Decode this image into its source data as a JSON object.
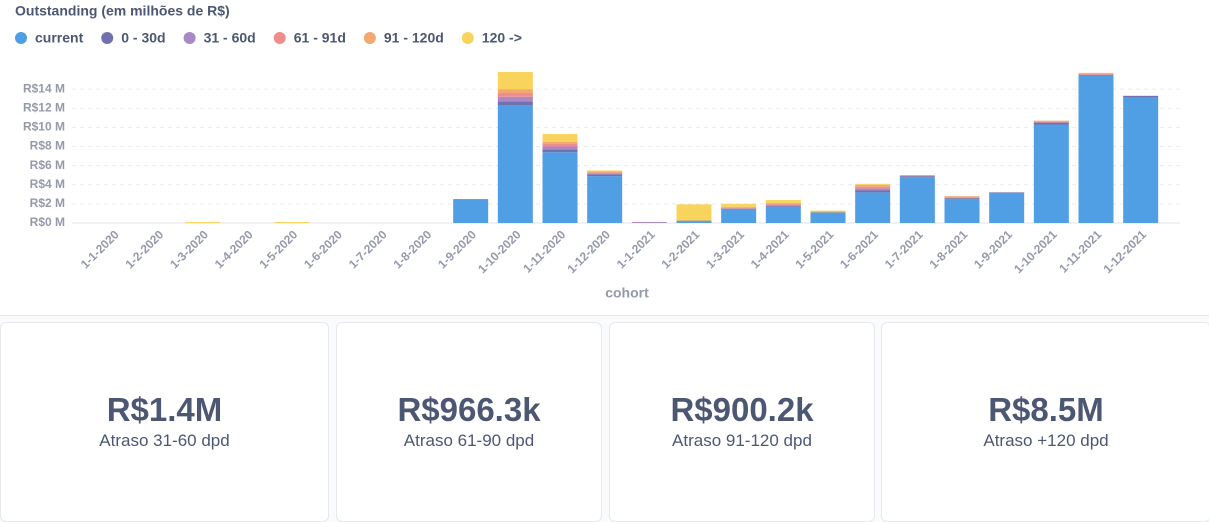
{
  "chart_data": {
    "type": "bar",
    "stacked": true,
    "title": "Outstanding (em milhões de R$)",
    "x_label": "cohort",
    "categories": [
      "1-1-2020",
      "1-2-2020",
      "1-3-2020",
      "1-4-2020",
      "1-5-2020",
      "1-6-2020",
      "1-7-2020",
      "1-8-2020",
      "1-9-2020",
      "1-10-2020",
      "1-11-2020",
      "1-12-2020",
      "1-1-2021",
      "1-2-2021",
      "1-3-2021",
      "1-4-2021",
      "1-5-2021",
      "1-6-2021",
      "1-7-2021",
      "1-8-2021",
      "1-9-2021",
      "1-10-2021",
      "1-11-2021",
      "1-12-2021"
    ],
    "series": [
      {
        "name": "current",
        "color": "#509ee3",
        "values": [
          0,
          0,
          0,
          0,
          0,
          0,
          0,
          0,
          2.5,
          12.3,
          7.4,
          4.9,
          0,
          0.2,
          1.5,
          1.7,
          1.1,
          3.2,
          4.8,
          2.5,
          3.1,
          10.3,
          15.4,
          13.1
        ]
      },
      {
        "name": "0 - 30d",
        "color": "#7172ad",
        "values": [
          0,
          0,
          0,
          0,
          0,
          0,
          0,
          0,
          0,
          0.4,
          0.3,
          0.2,
          0,
          0.05,
          0,
          0.1,
          0,
          0.2,
          0.1,
          0.1,
          0.1,
          0.2,
          0.1,
          0.2
        ]
      },
      {
        "name": "31 - 60d",
        "color": "#a989c5",
        "values": [
          0,
          0,
          0,
          0,
          0,
          0,
          0,
          0,
          0,
          0.5,
          0.3,
          0.1,
          0.1,
          0,
          0,
          0.1,
          0,
          0.2,
          0,
          0,
          0,
          0,
          0,
          0
        ]
      },
      {
        "name": "61 - 91d",
        "color": "#ef8c8c",
        "values": [
          0,
          0,
          0,
          0,
          0,
          0,
          0,
          0,
          0,
          0.4,
          0.3,
          0.1,
          0,
          0,
          0.1,
          0.1,
          0,
          0.2,
          0.1,
          0.1,
          0,
          0.1,
          0.1,
          0
        ]
      },
      {
        "name": "91 - 120d",
        "color": "#f2a86f",
        "values": [
          0,
          0,
          0,
          0,
          0,
          0,
          0,
          0,
          0,
          0.4,
          0.2,
          0.1,
          0,
          0,
          0.1,
          0.1,
          0.1,
          0.2,
          0,
          0.1,
          0,
          0.1,
          0.1,
          0
        ]
      },
      {
        "name": "120 ->",
        "color": "#f9d45c",
        "values": [
          0,
          0,
          0.1,
          0,
          0.1,
          0,
          0,
          0,
          0,
          1.8,
          0.8,
          0.1,
          0,
          1.7,
          0.3,
          0.3,
          0.1,
          0.1,
          0,
          0,
          0,
          0,
          0,
          0
        ]
      }
    ],
    "ylim": [
      0,
      16
    ],
    "yticks": [
      {
        "value": 0,
        "label": "R$0 M"
      },
      {
        "value": 2,
        "label": "R$2 M"
      },
      {
        "value": 4,
        "label": "R$4 M"
      },
      {
        "value": 6,
        "label": "R$6 M"
      },
      {
        "value": 8,
        "label": "R$8 M"
      },
      {
        "value": 10,
        "label": "R$10 M"
      },
      {
        "value": 12,
        "label": "R$12 M"
      },
      {
        "value": 14,
        "label": "R$14 M"
      }
    ],
    "grid": true,
    "legend": "top-left"
  },
  "cards": [
    {
      "value": "R$1.4M",
      "label": "Atraso 31-60 dpd"
    },
    {
      "value": "R$966.3k",
      "label": "Atraso 61-90 dpd"
    },
    {
      "value": "R$900.2k",
      "label": "Atraso 91-120 dpd"
    },
    {
      "value": "R$8.5M",
      "label": "Atraso +120 dpd"
    }
  ]
}
